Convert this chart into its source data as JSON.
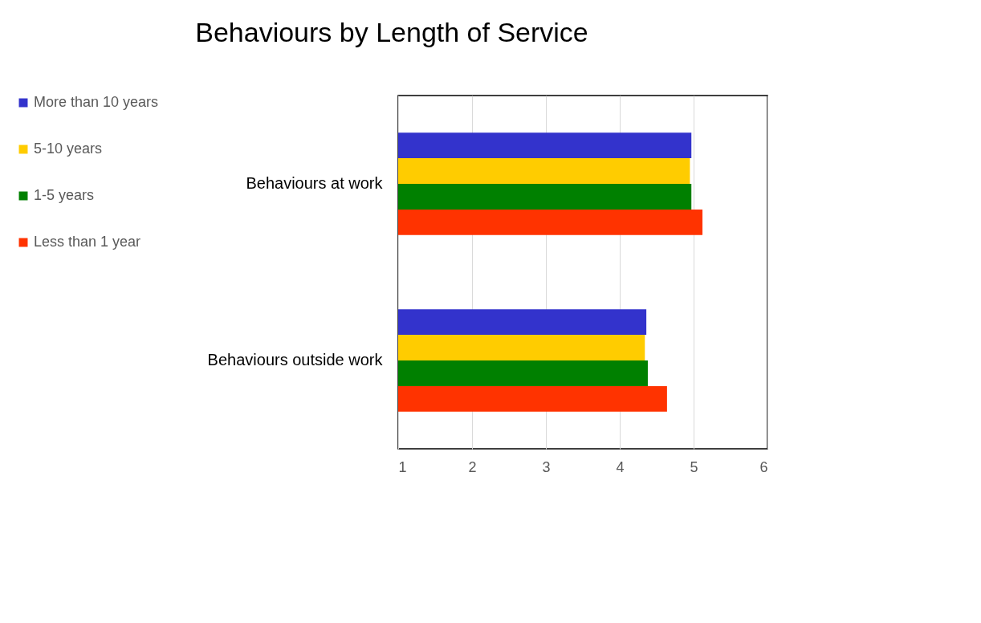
{
  "chart_data": {
    "type": "bar",
    "title": "Behaviours by Length of Service",
    "orientation": "horizontal",
    "categories": [
      "Behaviours at work",
      "Behaviours outside work"
    ],
    "series": [
      {
        "name": "More than 10 years",
        "color": "#3333cc",
        "values": [
          4.97,
          4.36
        ]
      },
      {
        "name": "5-10 years",
        "color": "#ffcc00",
        "values": [
          4.95,
          4.34
        ]
      },
      {
        "name": "1-5 years",
        "color": "#008000",
        "values": [
          4.97,
          4.38
        ]
      },
      {
        "name": "Less than 1 year",
        "color": "#ff3300",
        "values": [
          5.12,
          4.64
        ]
      }
    ],
    "xlim": [
      1,
      6
    ],
    "xticks": [
      1,
      2,
      3,
      4,
      5,
      6
    ],
    "grid": "x",
    "legend": "left"
  }
}
